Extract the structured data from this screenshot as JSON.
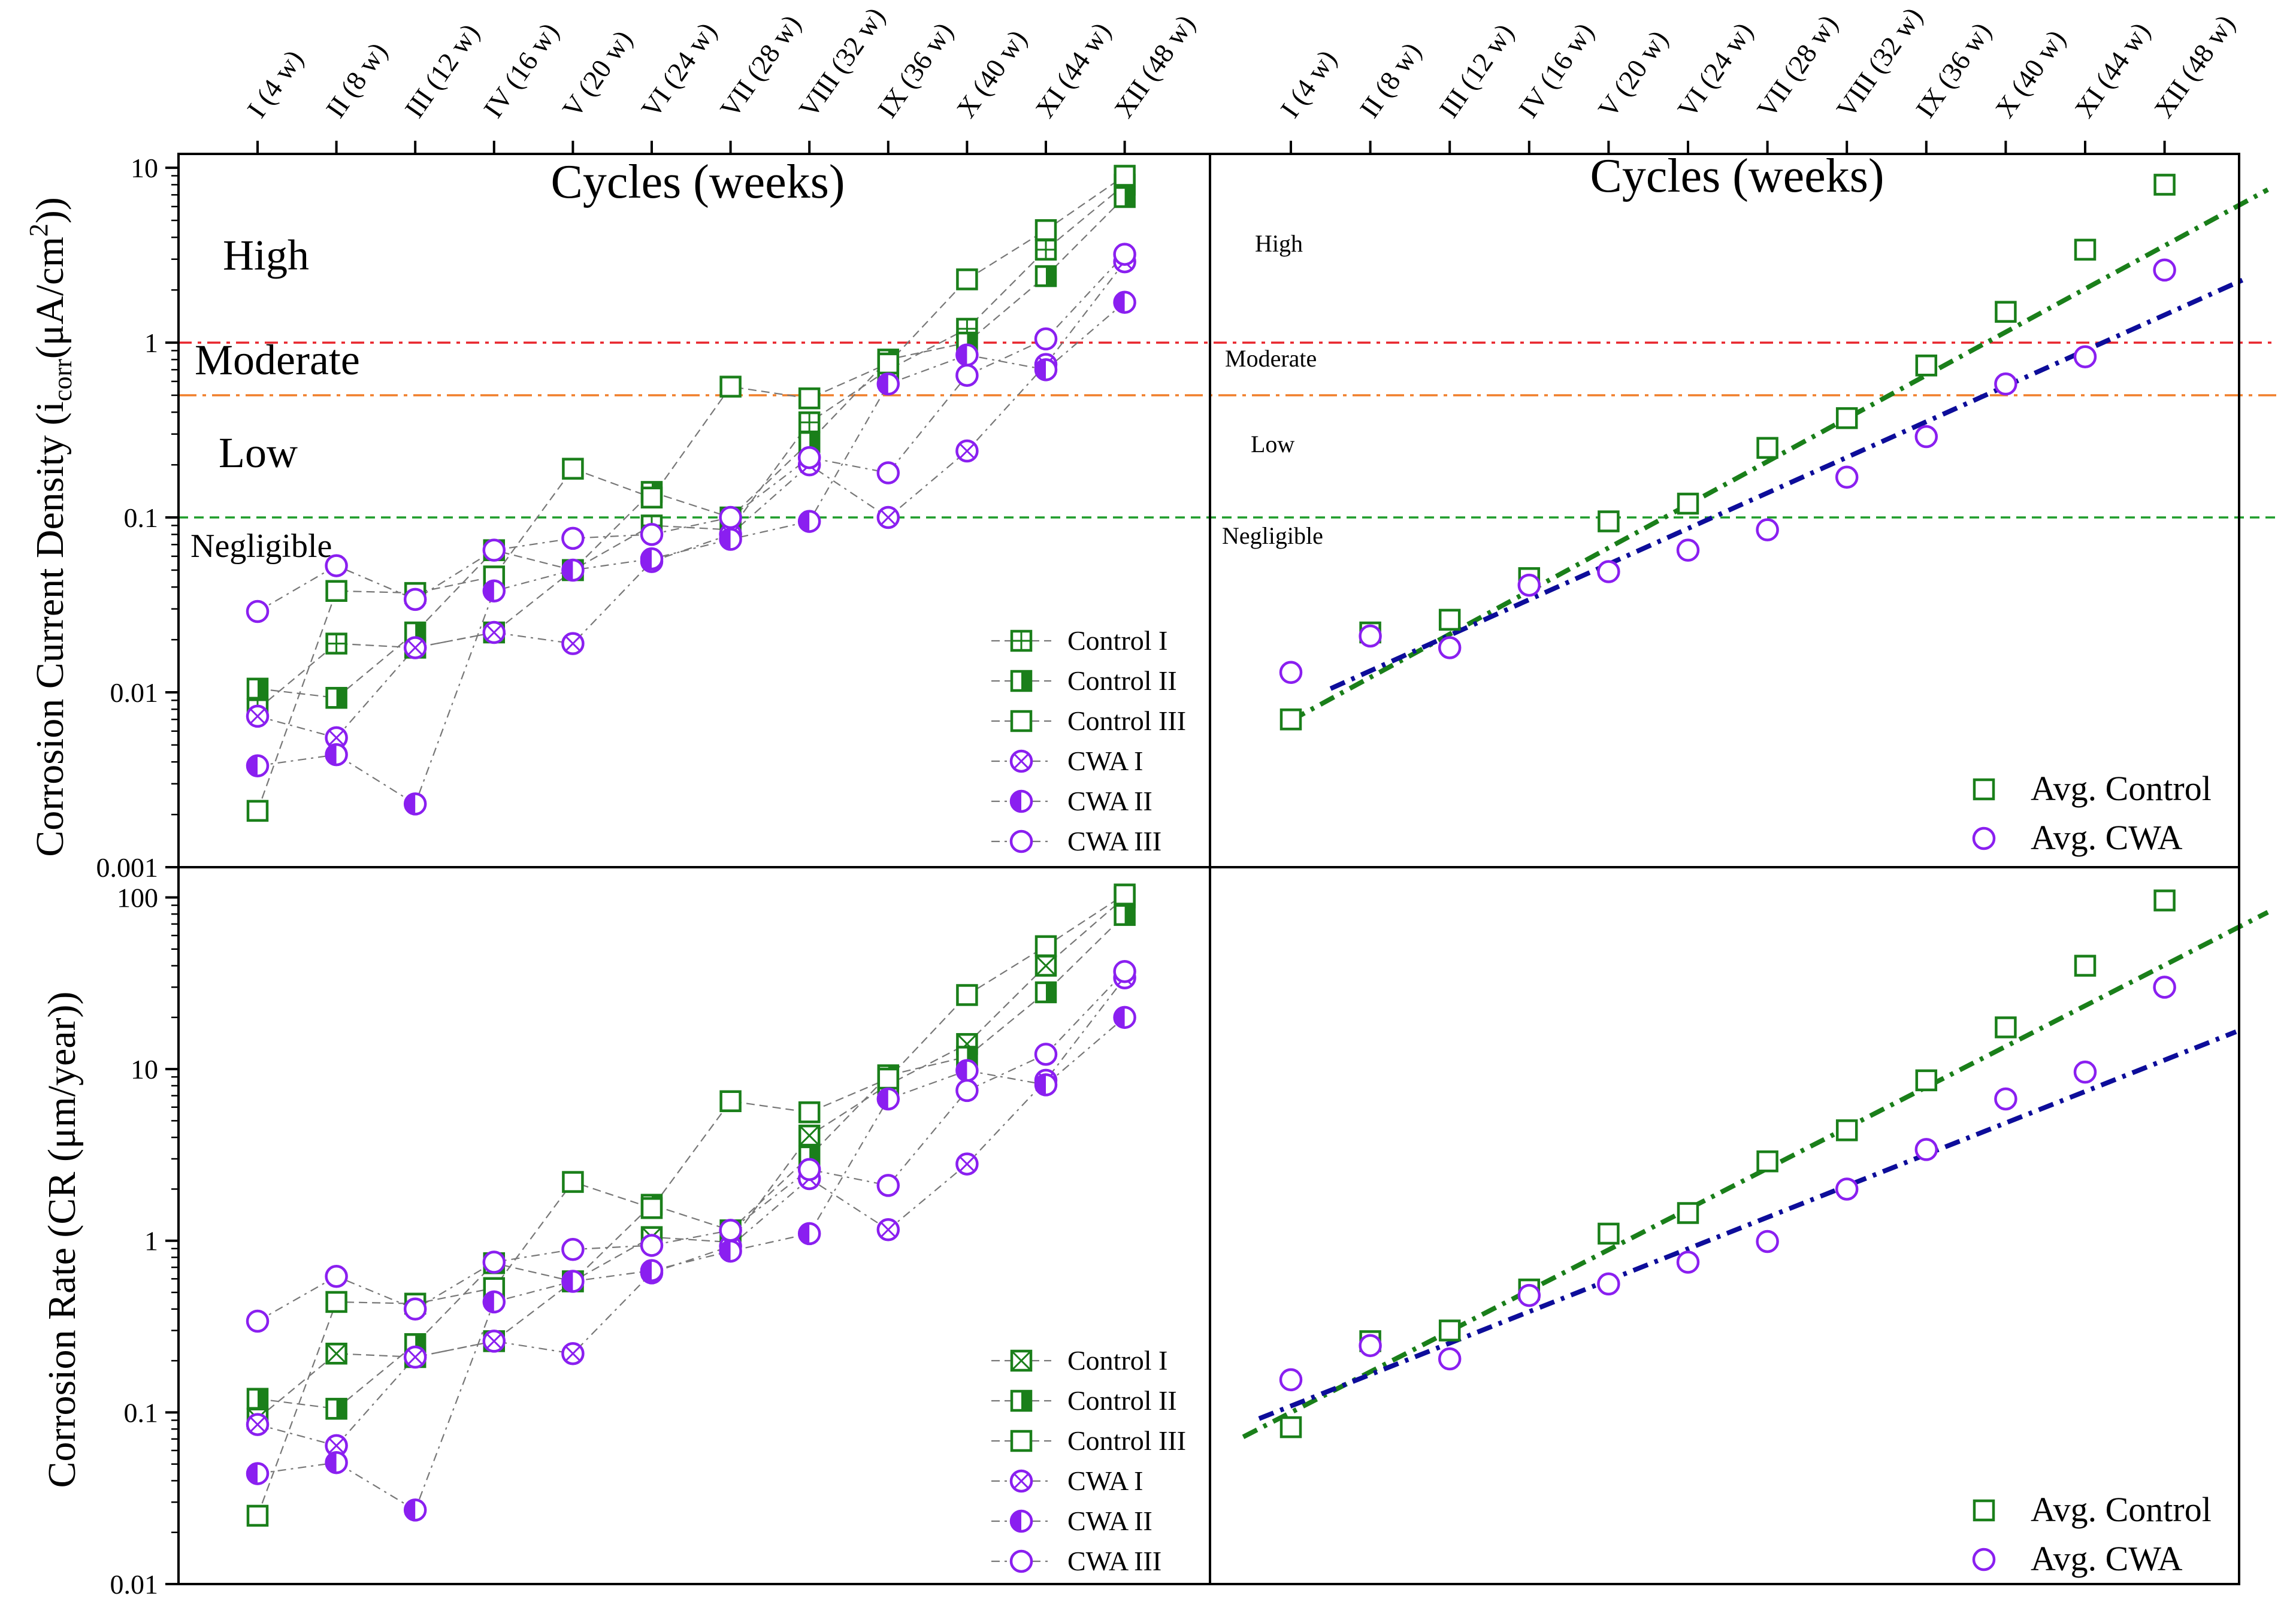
{
  "figure": {
    "top_axis_title": "Cycles (weeks)",
    "cycles": [
      "I (4 w)",
      "II (8 w)",
      "III (12 w)",
      "IV (16 w)",
      "V (20 w)",
      "VI (24 w)",
      "VII (28 w)",
      "VIII (32 w)",
      "IX (36 w)",
      "X (40 w)",
      "XI (44 w)",
      "XII (48 w)"
    ],
    "y_labels": {
      "top": "Corrosion Current Density (i_corr (μA/cm²))",
      "bottom": "Corrosion Rate (CR (μm/year))"
    },
    "zones": {
      "high": "High",
      "moderate": "Moderate",
      "low": "Low",
      "negligible": "Negligible"
    },
    "thresholds": [
      {
        "value": 1,
        "color": "#e8262c"
      },
      {
        "value": 0.5,
        "color": "#f07f2a"
      },
      {
        "value": 0.1,
        "color": "#1f9c2a"
      }
    ],
    "ticks": {
      "top": [
        "0.001",
        "0.01",
        "0.1",
        "1",
        "10"
      ],
      "bottom": [
        "0.01",
        "0.1",
        "1",
        "10",
        "100"
      ]
    }
  },
  "colors": {
    "control": "#1a7f1a",
    "cwa": "#8a1ff0",
    "fit_control": "#1a7f1a",
    "fit_cwa": "#0d0d9a",
    "grey_line": "#777777"
  },
  "chart_data": [
    {
      "panel": "top-left",
      "type": "line",
      "yscale": "log",
      "ylim": [
        0.001,
        12
      ],
      "title": "Cycles (weeks)",
      "ylabel": "Corrosion Current Density (icorr (μA/cm2))",
      "legend_position": "bottom-right",
      "series": [
        {
          "name": "Control I",
          "group": "control",
          "marker": "square-plus",
          "values": [
            0.008,
            0.019,
            0.018,
            0.022,
            0.05,
            0.09,
            0.085,
            0.35,
            0.7,
            1.2,
            3.4,
            8.0
          ]
        },
        {
          "name": "Control II",
          "group": "control",
          "marker": "square-half",
          "values": [
            0.0105,
            0.0093,
            0.022,
            0.065,
            0.05,
            0.14,
            0.1,
            0.27,
            0.8,
            1.0,
            2.4,
            6.8
          ]
        },
        {
          "name": "Control III",
          "group": "control",
          "marker": "square",
          "values": [
            0.0021,
            0.038,
            0.037,
            0.046,
            0.19,
            0.13,
            0.56,
            0.48,
            0.76,
            2.3,
            4.4,
            9.0
          ]
        },
        {
          "name": "CWA I",
          "group": "cwa",
          "marker": "circle-x",
          "values": [
            0.0073,
            0.0055,
            0.018,
            0.022,
            0.019,
            0.056,
            0.08,
            0.2,
            0.1,
            0.24,
            0.75,
            2.9
          ]
        },
        {
          "name": "CWA II",
          "group": "cwa",
          "marker": "circle-half",
          "values": [
            0.0038,
            0.0044,
            0.0023,
            0.038,
            0.05,
            0.058,
            0.075,
            0.095,
            0.58,
            0.85,
            0.7,
            1.7
          ]
        },
        {
          "name": "CWA III",
          "group": "cwa",
          "marker": "circle",
          "values": [
            0.029,
            0.053,
            0.034,
            0.065,
            0.076,
            0.08,
            0.1,
            0.22,
            0.18,
            0.65,
            1.05,
            3.2
          ]
        }
      ]
    },
    {
      "panel": "top-right",
      "type": "scatter",
      "yscale": "log",
      "ylim": [
        0.001,
        12
      ],
      "title": "Cycles (weeks)",
      "legend_position": "bottom-right",
      "series": [
        {
          "name": "Avg. Control",
          "group": "control",
          "marker": "square",
          "values": [
            0.007,
            0.022,
            0.026,
            0.045,
            0.095,
            0.12,
            0.25,
            0.37,
            0.74,
            1.5,
            3.4,
            8.0
          ]
        },
        {
          "name": "Avg. CWA",
          "group": "cwa",
          "marker": "circle",
          "values": [
            0.013,
            0.021,
            0.018,
            0.041,
            0.049,
            0.065,
            0.085,
            0.17,
            0.29,
            0.58,
            0.83,
            2.6
          ]
        }
      ],
      "fits": [
        {
          "name": "Avg. Control fit",
          "group": "fit_control",
          "x_range": [
            1.0,
            13.3
          ],
          "y_range": [
            0.0069,
            7.5
          ]
        },
        {
          "name": "Avg. CWA fit",
          "group": "fit_cwa",
          "x_range": [
            1.5,
            13.0
          ],
          "y_range": [
            0.0105,
            2.3
          ]
        }
      ]
    },
    {
      "panel": "bottom-left",
      "type": "line",
      "yscale": "log",
      "ylim": [
        0.01,
        150
      ],
      "ylabel": "Corrosion Rate (CR (μm/year))",
      "legend_position": "bottom-right",
      "series": [
        {
          "name": "Control I",
          "group": "control",
          "marker": "square-x",
          "values": [
            0.092,
            0.22,
            0.21,
            0.26,
            0.58,
            1.05,
            0.98,
            4.1,
            8.1,
            14,
            40,
            100
          ]
        },
        {
          "name": "Control II",
          "group": "control",
          "marker": "square-half",
          "values": [
            0.12,
            0.105,
            0.25,
            0.74,
            0.58,
            1.62,
            1.15,
            3.1,
            9.2,
            11.8,
            28,
            79
          ]
        },
        {
          "name": "Control III",
          "group": "control",
          "marker": "square",
          "values": [
            0.025,
            0.44,
            0.43,
            0.53,
            2.2,
            1.55,
            6.5,
            5.6,
            8.8,
            27,
            52,
            104
          ]
        },
        {
          "name": "CWA I",
          "group": "cwa",
          "marker": "circle-x",
          "values": [
            0.085,
            0.064,
            0.21,
            0.26,
            0.22,
            0.65,
            0.93,
            2.3,
            1.16,
            2.8,
            8.6,
            34
          ]
        },
        {
          "name": "CWA II",
          "group": "cwa",
          "marker": "circle-half",
          "values": [
            0.044,
            0.051,
            0.027,
            0.44,
            0.58,
            0.67,
            0.87,
            1.1,
            6.7,
            9.8,
            8.1,
            20
          ]
        },
        {
          "name": "CWA III",
          "group": "cwa",
          "marker": "circle",
          "values": [
            0.34,
            0.62,
            0.4,
            0.75,
            0.89,
            0.94,
            1.15,
            2.6,
            2.1,
            7.5,
            12.2,
            37
          ]
        }
      ]
    },
    {
      "panel": "bottom-right",
      "type": "scatter",
      "yscale": "log",
      "ylim": [
        0.01,
        150
      ],
      "legend_position": "bottom-right",
      "series": [
        {
          "name": "Avg. Control",
          "group": "control",
          "marker": "square",
          "values": [
            0.082,
            0.26,
            0.3,
            0.52,
            1.1,
            1.45,
            2.9,
            4.4,
            8.6,
            17.5,
            40,
            96
          ]
        },
        {
          "name": "Avg. CWA",
          "group": "cwa",
          "marker": "circle",
          "values": [
            0.155,
            0.245,
            0.205,
            0.48,
            0.56,
            0.75,
            0.99,
            2.0,
            3.4,
            6.7,
            9.6,
            30
          ]
        }
      ],
      "fits": [
        {
          "name": "Avg. Control fit",
          "group": "fit_control",
          "x_range": [
            0.4,
            13.3
          ],
          "y_range": [
            0.072,
            82
          ]
        },
        {
          "name": "Avg. CWA fit",
          "group": "fit_cwa",
          "x_range": [
            0.6,
            12.9
          ],
          "y_range": [
            0.092,
            16.5
          ]
        }
      ]
    }
  ]
}
